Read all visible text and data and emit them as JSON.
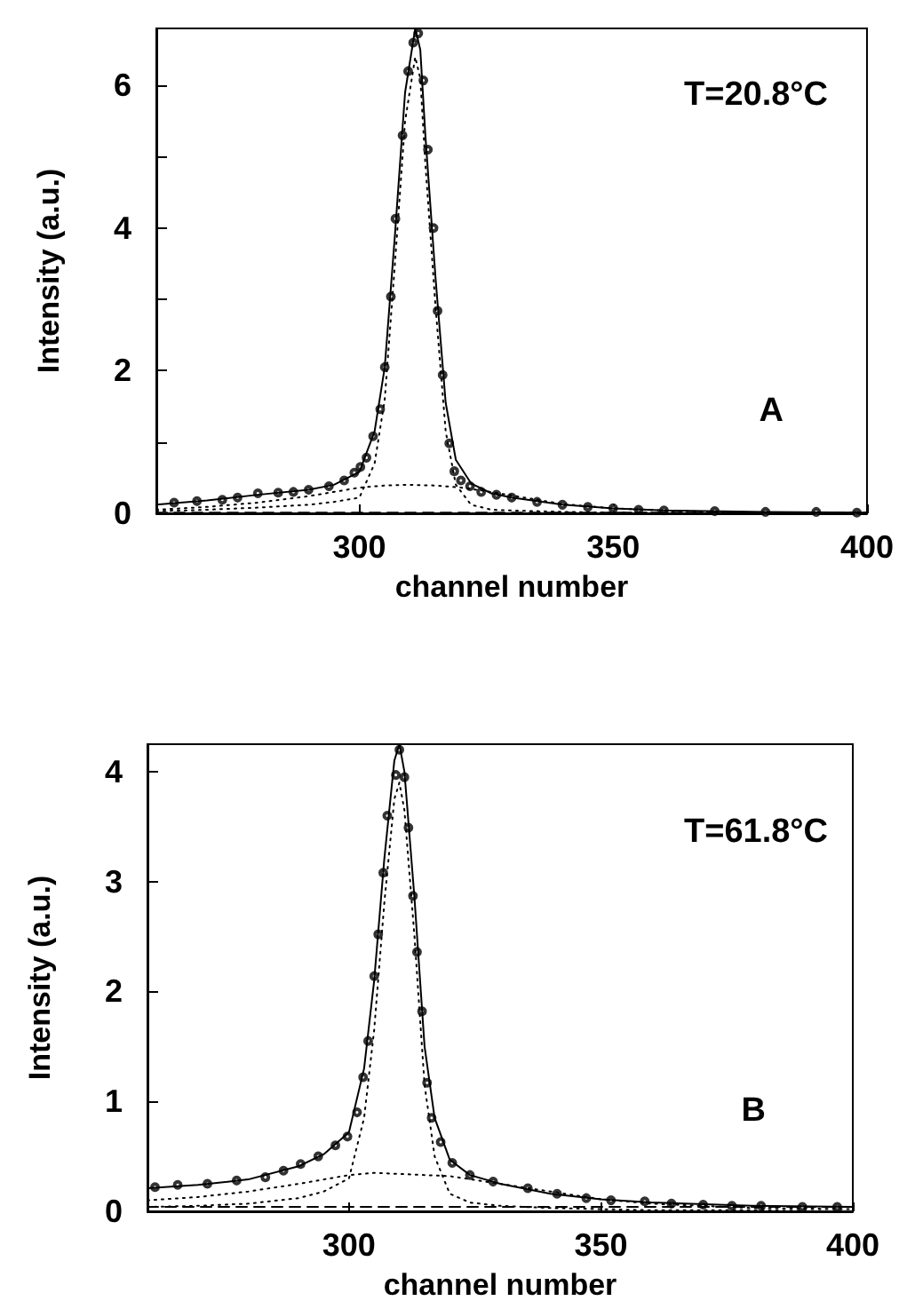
{
  "chart_data": [
    {
      "type": "scatter",
      "xlabel": "channel number",
      "ylabel": "Intensity (a.u.)",
      "annotations": [
        "T=20.8°C",
        "A"
      ],
      "xlim": [
        260,
        400
      ],
      "xticks": [
        300,
        350,
        400
      ],
      "ylim": [
        0,
        6.8
      ],
      "yticks": [
        0,
        {
          "value": 1,
          "label": null
        },
        2,
        {
          "value": 3,
          "label": null
        },
        4,
        {
          "value": 5,
          "label": null
        },
        6
      ],
      "grid": false,
      "series": [
        {
          "marker": "circle",
          "color": "#000000",
          "x": [
            263.5,
            268,
            273,
            276,
            280,
            284,
            287,
            290,
            294,
            297,
            299,
            300.2,
            301.4,
            302.7,
            304.1,
            305,
            306.2,
            307.1,
            308.5,
            309.6,
            310.6,
            311.6,
            312.6,
            313.5,
            314.6,
            315.4,
            316.4,
            317.7,
            318.7,
            320,
            321.8,
            324,
            327,
            330,
            335,
            340,
            345,
            350,
            355,
            360,
            370,
            380,
            390,
            398
          ],
          "values": [
            0.15,
            0.17,
            0.19,
            0.22,
            0.28,
            0.29,
            0.3,
            0.33,
            0.38,
            0.46,
            0.57,
            0.65,
            0.78,
            1.08,
            1.46,
            2.05,
            3.04,
            4.13,
            5.3,
            6.2,
            6.6,
            6.73,
            6.07,
            5.1,
            4.0,
            2.84,
            1.94,
            0.98,
            0.59,
            0.46,
            0.38,
            0.3,
            0.26,
            0.22,
            0.16,
            0.12,
            0.09,
            0.07,
            0.05,
            0.04,
            0.03,
            0.02,
            0.02,
            0.01
          ]
        },
        {
          "type": "line",
          "line_style": "solid",
          "color": "#000000",
          "x": [
            260,
            270,
            280,
            290,
            295,
            300,
            303,
            305,
            307,
            309,
            311,
            312,
            313,
            315,
            317,
            319,
            322,
            326,
            330,
            340,
            350,
            360,
            380,
            400
          ],
          "values": [
            0.12,
            0.18,
            0.26,
            0.33,
            0.4,
            0.58,
            1.15,
            2.05,
            3.9,
            5.9,
            6.8,
            6.5,
            5.3,
            3.3,
            1.55,
            0.75,
            0.42,
            0.28,
            0.22,
            0.12,
            0.07,
            0.04,
            0.02,
            0.01
          ]
        },
        {
          "type": "line",
          "line_style": "dotted",
          "color": "#000000",
          "x": [
            260,
            270,
            280,
            290,
            295,
            300,
            303,
            305,
            307,
            309,
            311,
            312,
            313,
            315,
            317,
            319,
            322,
            326,
            330,
            340,
            350,
            360,
            380,
            400
          ],
          "values": [
            0.03,
            0.05,
            0.08,
            0.12,
            0.16,
            0.22,
            0.7,
            1.6,
            3.5,
            5.5,
            6.4,
            6.1,
            4.9,
            2.9,
            1.15,
            0.4,
            0.12,
            0.05,
            0.04,
            0.02,
            0.01,
            0.01,
            0.01,
            0.0
          ]
        },
        {
          "type": "line",
          "line_style": "dotted",
          "color": "#000000",
          "x": [
            260,
            270,
            280,
            290,
            300,
            305,
            309,
            315,
            320,
            325,
            330,
            340,
            350,
            360,
            370,
            380,
            400
          ],
          "values": [
            0.05,
            0.09,
            0.15,
            0.24,
            0.36,
            0.39,
            0.4,
            0.39,
            0.36,
            0.31,
            0.25,
            0.13,
            0.07,
            0.04,
            0.02,
            0.01,
            0.01
          ]
        },
        {
          "type": "line",
          "line_style": "dashed",
          "color": "#000000",
          "x": [
            260,
            400
          ],
          "values": [
            0.01,
            0.01
          ]
        }
      ]
    },
    {
      "type": "scatter",
      "xlabel": "channel number",
      "ylabel": "Intensity (a.u.)",
      "annotations": [
        "T=61.8°C",
        "B"
      ],
      "xlim": [
        260,
        400
      ],
      "xticks": [
        300,
        350,
        400
      ],
      "ylim": [
        0,
        4.25
      ],
      "yticks": [
        0,
        1,
        2,
        3,
        4
      ],
      "grid": false,
      "series": [
        {
          "marker": "circle",
          "color": "#000000",
          "x": [
            261.5,
            266,
            271.9,
            277.7,
            283.4,
            287,
            290.4,
            293.9,
            297.3,
            299.7,
            301.6,
            302.8,
            303.8,
            305,
            305.8,
            306.8,
            307.6,
            309.3,
            310,
            311,
            311.8,
            312.7,
            313.5,
            314.5,
            315.5,
            316.4,
            318.2,
            320.5,
            324,
            328.6,
            335.5,
            341.3,
            347.1,
            352,
            358.7,
            364,
            370.3,
            376,
            381.8,
            390,
            396.9
          ],
          "values": [
            0.22,
            0.24,
            0.25,
            0.28,
            0.31,
            0.37,
            0.43,
            0.5,
            0.6,
            0.68,
            0.9,
            1.22,
            1.55,
            2.14,
            2.52,
            3.08,
            3.6,
            3.97,
            4.2,
            3.95,
            3.49,
            2.87,
            2.36,
            1.82,
            1.17,
            0.85,
            0.63,
            0.44,
            0.33,
            0.27,
            0.21,
            0.16,
            0.12,
            0.1,
            0.09,
            0.07,
            0.06,
            0.05,
            0.05,
            0.04,
            0.04
          ]
        },
        {
          "type": "line",
          "line_style": "solid",
          "color": "#000000",
          "x": [
            260,
            270,
            280,
            290,
            295,
            300,
            303,
            305,
            307,
            309,
            310,
            311,
            313,
            315,
            317,
            320,
            324,
            330,
            340,
            350,
            360,
            380,
            400
          ],
          "values": [
            0.21,
            0.24,
            0.29,
            0.41,
            0.52,
            0.72,
            1.3,
            2.1,
            3.2,
            4.1,
            4.25,
            4.0,
            2.85,
            1.5,
            0.85,
            0.47,
            0.33,
            0.25,
            0.16,
            0.11,
            0.08,
            0.05,
            0.04
          ]
        },
        {
          "type": "line",
          "line_style": "dotted",
          "color": "#000000",
          "x": [
            260,
            270,
            280,
            290,
            295,
            300,
            303,
            305,
            307,
            309,
            310,
            311,
            313,
            315,
            317,
            320,
            324,
            330,
            340,
            350,
            360,
            380,
            400
          ],
          "values": [
            0.04,
            0.05,
            0.07,
            0.12,
            0.18,
            0.3,
            0.85,
            1.65,
            2.8,
            3.75,
            3.9,
            3.65,
            2.5,
            1.15,
            0.5,
            0.16,
            0.08,
            0.05,
            0.03,
            0.02,
            0.01,
            0.01,
            0.0
          ]
        },
        {
          "type": "line",
          "line_style": "dotted",
          "color": "#000000",
          "x": [
            260,
            270,
            280,
            290,
            300,
            305,
            310,
            320,
            330,
            340,
            350,
            360,
            380,
            400
          ],
          "values": [
            0.1,
            0.13,
            0.18,
            0.25,
            0.33,
            0.35,
            0.34,
            0.32,
            0.25,
            0.18,
            0.11,
            0.07,
            0.03,
            0.02
          ]
        },
        {
          "type": "line",
          "line_style": "dashed",
          "color": "#000000",
          "x": [
            260,
            400
          ],
          "values": [
            0.04,
            0.04
          ]
        }
      ]
    }
  ]
}
